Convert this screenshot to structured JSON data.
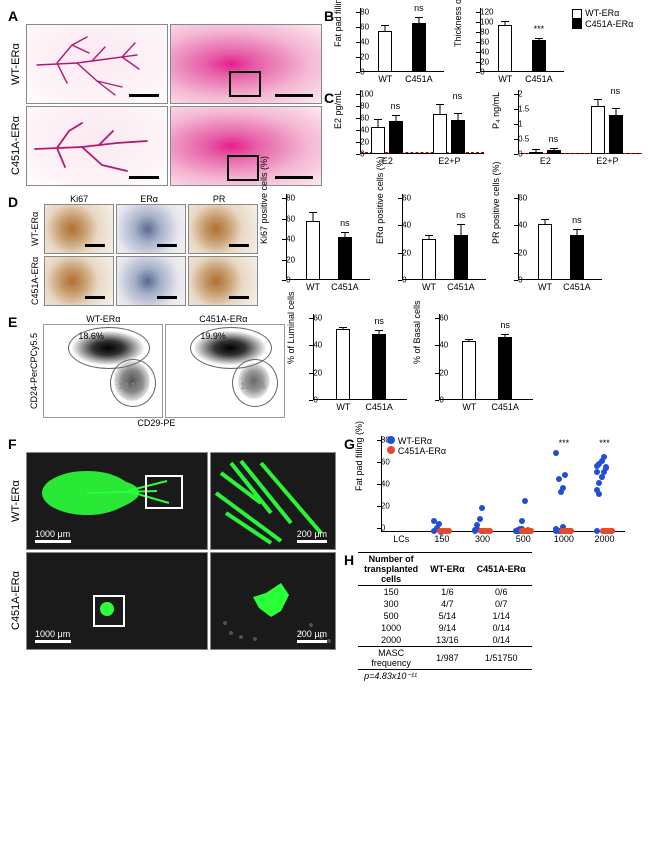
{
  "genotypes": {
    "wt": "WT-ERα",
    "mut": "C451A-ERα",
    "wt_short": "WT",
    "mut_short": "C451A"
  },
  "legend_panelB": {
    "wt": "WT-ERα",
    "mut": "C451A-ERα"
  },
  "A": {
    "scalebar_label": ""
  },
  "B": {
    "fat": {
      "ylabel": "Fat pad filling (%)",
      "ylim": [
        0,
        80
      ],
      "ytick_step": 20,
      "bars": [
        {
          "x": 30,
          "label": "WT",
          "fill": "white",
          "value": 55,
          "err": 6
        },
        {
          "x": 70,
          "label": "C451A",
          "fill": "black",
          "value": 65,
          "err": 8,
          "sig": "ns"
        }
      ]
    },
    "duct": {
      "ylabel": "Thickness of ducts (μm)",
      "ylim": [
        0,
        120
      ],
      "ytick_step": 20,
      "bars": [
        {
          "x": 30,
          "label": "WT",
          "fill": "white",
          "value": 95,
          "err": 5
        },
        {
          "x": 70,
          "label": "C451A",
          "fill": "black",
          "value": 65,
          "err": 4,
          "sig": "***"
        }
      ]
    }
  },
  "C": {
    "e2": {
      "ylabel": "E2 pg/mL",
      "ylim": [
        0,
        100
      ],
      "ytick_step": 20,
      "dash_at": 4,
      "groups": [
        {
          "x": 22,
          "label": "E2",
          "wt": 45,
          "wt_err": 12,
          "mut": 55,
          "mut_err": 10,
          "sig": "ns"
        },
        {
          "x": 72,
          "label": "E2+P",
          "wt": 67,
          "wt_err": 15,
          "mut": 57,
          "mut_err": 12,
          "sig": "ns"
        }
      ]
    },
    "p4": {
      "ylabel": "P₄ ng/mL",
      "ylim": [
        0,
        2.0
      ],
      "ytick_step": 0.5,
      "dash_at": 0.05,
      "groups": [
        {
          "x": 22,
          "label": "E2",
          "wt": 0.08,
          "wt_err": 0.05,
          "mut": 0.13,
          "mut_err": 0.07,
          "sig": "ns"
        },
        {
          "x": 72,
          "label": "E2+P",
          "wt": 1.6,
          "wt_err": 0.2,
          "mut": 1.3,
          "mut_err": 0.25,
          "sig": "ns"
        }
      ]
    }
  },
  "D": {
    "cols": [
      "Ki67",
      "ERα",
      "PR"
    ],
    "charts": [
      {
        "ylabel": "Ki67 positive cells (%)",
        "ylim": [
          0,
          80
        ],
        "ytick_step": 20,
        "wt": 58,
        "wt_err": 7,
        "mut": 42,
        "mut_err": 5,
        "sig": "ns"
      },
      {
        "ylabel": "ERα positive cells (%)",
        "ylim": [
          0,
          60
        ],
        "ytick_step": 20,
        "wt": 30,
        "wt_err": 2,
        "mut": 33,
        "mut_err": 8,
        "sig": "ns"
      },
      {
        "ylabel": "PR positive cells (%)",
        "ylim": [
          0,
          60
        ],
        "ytick_step": 20,
        "wt": 41,
        "wt_err": 3,
        "mut": 33,
        "mut_err": 4,
        "sig": "ns"
      }
    ]
  },
  "E": {
    "ylab_axis": "CD24-PerCPCy5.5",
    "xlab_axis": "CD29-PE",
    "plots": [
      {
        "title": "WT-ERα",
        "lum": "18.6%",
        "bas": "18.1%"
      },
      {
        "title": "C451A-ERα",
        "lum": "19.9%",
        "bas": "13.8%"
      }
    ],
    "charts": [
      {
        "ylabel": "% of Luminal cells",
        "ylim": [
          0,
          60
        ],
        "ytick_step": 20,
        "wt": 52,
        "wt_err": 1,
        "mut": 48,
        "mut_err": 3,
        "sig": "ns"
      },
      {
        "ylabel": "% of Basal cells",
        "ylim": [
          0,
          60
        ],
        "ytick_step": 20,
        "wt": 43,
        "wt_err": 1,
        "mut": 46,
        "mut_err": 2,
        "sig": "ns"
      }
    ]
  },
  "F": {
    "scalebar_left": "1000 μm",
    "scalebar_right": "200 μm"
  },
  "G": {
    "ylabel": "Fat pad filling (%)",
    "ylim": [
      0,
      80
    ],
    "ytick_step": 20,
    "x_categories": [
      "LCs",
      "150",
      "300",
      "500",
      "1000",
      "2000"
    ],
    "legend": {
      "wt": "WT-ERα",
      "mut": "C451A-ERα"
    },
    "colors": {
      "wt": "#1f4fd6",
      "mut": "#e34b2e"
    },
    "sig": {
      "1000": "***",
      "2000": "***"
    },
    "points_wt": {
      "150": [
        1,
        4,
        7,
        0,
        1,
        10
      ],
      "300": [
        2,
        3,
        12,
        22,
        1,
        1,
        6
      ],
      "500": [
        1,
        1,
        3,
        3,
        28,
        1,
        2,
        2,
        1,
        1,
        1,
        1,
        1,
        10
      ],
      "1000": [
        3,
        1,
        1,
        40,
        52,
        72,
        48,
        36,
        5,
        1,
        1,
        1,
        1,
        1
      ],
      "2000": [
        38,
        45,
        50,
        55,
        58,
        60,
        62,
        65,
        68,
        59,
        55,
        35,
        50,
        1,
        1,
        1
      ]
    },
    "points_mut": {
      "150": [
        1,
        1,
        1,
        1,
        1,
        1
      ],
      "300": [
        1,
        1,
        1,
        1,
        1,
        1,
        1
      ],
      "500": [
        1,
        1,
        1,
        1,
        1,
        1,
        1,
        1,
        1,
        1,
        1,
        1,
        1,
        2
      ],
      "1000": [
        1,
        1,
        1,
        1,
        1,
        1,
        1,
        1,
        1,
        1,
        1,
        1,
        1,
        1
      ],
      "2000": [
        1,
        1,
        1,
        1,
        1,
        1,
        1,
        1,
        1,
        1,
        1,
        1,
        1,
        1
      ]
    }
  },
  "H": {
    "header": [
      "Number of\ntransplanted\ncells",
      "WT-ERα",
      "C451A-ERα"
    ],
    "rows": [
      [
        "150",
        "1/6",
        "0/6"
      ],
      [
        "300",
        "4/7",
        "0/7"
      ],
      [
        "500",
        "5/14",
        "1/14"
      ],
      [
        "1000",
        "9/14",
        "0/14"
      ],
      [
        "2000",
        "13/16",
        "0/14"
      ]
    ],
    "masc_row": [
      "MASC\nfrequency",
      "1/987",
      "1/51750"
    ],
    "pvalue": "p=4.83x10⁻¹¹"
  }
}
